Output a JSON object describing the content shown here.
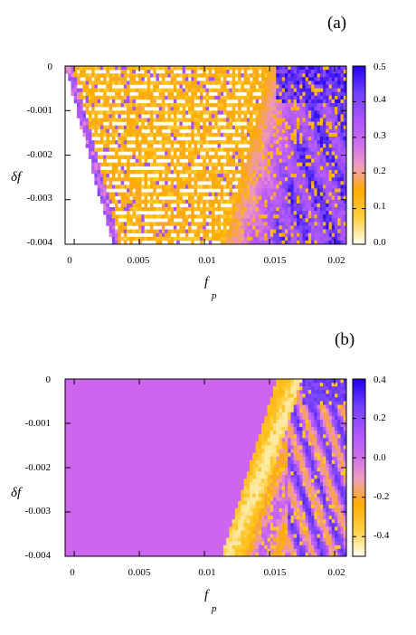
{
  "chart_data": [
    {
      "type": "heatmap",
      "panel_label": "(a)",
      "xlabel": "f",
      "xlabel_sub": "p",
      "ylabel": "δf",
      "xlim": [
        -0.0007,
        0.0209
      ],
      "ylim": [
        -0.004,
        0.0
      ],
      "x_ticks": [
        0,
        0.005,
        0.01,
        0.015,
        0.02
      ],
      "x_tick_labels": [
        "0",
        "0.005",
        "0.01",
        "0.015",
        "0.02"
      ],
      "y_ticks": [
        0,
        -0.001,
        -0.002,
        -0.003,
        -0.004
      ],
      "y_tick_labels": [
        "0",
        "-0.001",
        "-0.002",
        "-0.003",
        "-0.004"
      ],
      "colorbar": {
        "min": 0.0,
        "max": 0.5,
        "ticks": [
          0.0,
          0.1,
          0.2,
          0.3,
          0.4,
          0.5
        ],
        "tick_labels": [
          "0.0",
          "0.1",
          "0.2",
          "0.3",
          "0.4",
          "0.5"
        ],
        "colormap": [
          "#fffff5",
          "#ffcc33",
          "#ffaa00",
          "#ee99bb",
          "#cc66ee",
          "#aa55ff",
          "#7744ff",
          "#2200ee"
        ]
      },
      "regions": {
        "white_boundary_fp": [
          [
            0.0,
            -0.0007
          ],
          [
            -0.004,
            0.0029
          ]
        ],
        "onset_boundary_fp": [
          [
            0.0,
            0.015
          ],
          [
            -0.004,
            0.0115
          ]
        ],
        "strong_region_fp": 0.0155
      },
      "grid": false
    },
    {
      "type": "heatmap",
      "panel_label": "(b)",
      "xlabel": "f",
      "xlabel_sub": "p",
      "ylabel": "δf",
      "xlim": [
        -0.0007,
        0.0209
      ],
      "ylim": [
        -0.004,
        0.0
      ],
      "x_ticks": [
        0,
        0.005,
        0.01,
        0.015,
        0.02
      ],
      "x_tick_labels": [
        "0",
        "0.005",
        "0.01",
        "0.015",
        "0.02"
      ],
      "y_ticks": [
        0,
        -0.001,
        -0.002,
        -0.003,
        -0.004
      ],
      "y_tick_labels": [
        "0",
        "-0.001",
        "-0.002",
        "-0.003",
        "-0.004"
      ],
      "colorbar": {
        "min": -0.5,
        "max": 0.4,
        "ticks": [
          0.4,
          0.2,
          0.0,
          -0.2,
          -0.4
        ],
        "tick_labels": [
          "0.4",
          "0.2",
          "0.0",
          "-0.2",
          "-0.4"
        ],
        "colormap": [
          "#fffff5",
          "#ffcc33",
          "#ffaa00",
          "#ee99bb",
          "#cc66ee",
          "#aa55ff",
          "#7744ff",
          "#2200ee"
        ]
      },
      "background_value": 0.0,
      "regions": {
        "onset_boundary_fp": [
          [
            0.0,
            0.016
          ],
          [
            -0.004,
            0.0117
          ]
        ],
        "strong_region_fp": 0.0165
      },
      "grid": false
    }
  ]
}
